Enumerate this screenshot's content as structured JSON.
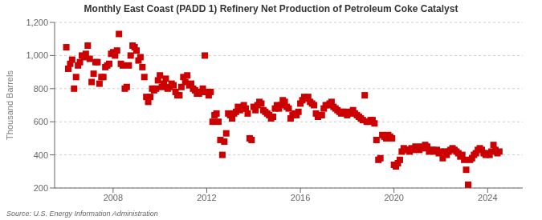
{
  "chart_data": {
    "type": "scatter",
    "title": "Monthly East Coast (PADD 1) Refinery Net Production of Petroleum Coke Catalyst",
    "y_label": "Thousand Barrels",
    "annotations": [
      "Source: U.S. Energy Information Administration"
    ],
    "color": "#cc0000",
    "marker": "square",
    "grid": true,
    "xlim": [
      2005.5,
      2025.5
    ],
    "xticks": [
      2008,
      2012,
      2016,
      2020,
      2024
    ],
    "ylim": [
      200,
      1200
    ],
    "yticks": [
      200,
      400,
      600,
      800,
      {
        "value": 1000,
        "label": "1,000"
      },
      {
        "value": 1200,
        "label": "1,200"
      }
    ],
    "x": [
      2006.0,
      2006.083,
      2006.167,
      2006.25,
      2006.333,
      2006.417,
      2006.5,
      2006.583,
      2006.667,
      2006.75,
      2006.833,
      2006.917,
      2007.0,
      2007.083,
      2007.167,
      2007.25,
      2007.333,
      2007.417,
      2007.5,
      2007.583,
      2007.667,
      2007.75,
      2007.833,
      2007.917,
      2008.0,
      2008.083,
      2008.167,
      2008.25,
      2008.333,
      2008.417,
      2008.5,
      2008.583,
      2008.667,
      2008.75,
      2008.833,
      2008.917,
      2009.0,
      2009.083,
      2009.167,
      2009.25,
      2009.333,
      2009.417,
      2009.5,
      2009.583,
      2009.667,
      2009.75,
      2009.833,
      2009.917,
      2010.0,
      2010.083,
      2010.167,
      2010.25,
      2010.333,
      2010.417,
      2010.5,
      2010.583,
      2010.667,
      2010.75,
      2010.833,
      2010.917,
      2011.0,
      2011.083,
      2011.167,
      2011.25,
      2011.333,
      2011.417,
      2011.5,
      2011.583,
      2011.667,
      2011.75,
      2011.833,
      2011.917,
      2012.0,
      2012.083,
      2012.167,
      2012.25,
      2012.333,
      2012.417,
      2012.5,
      2012.583,
      2012.667,
      2012.75,
      2012.833,
      2012.917,
      2013.0,
      2013.083,
      2013.167,
      2013.25,
      2013.333,
      2013.417,
      2013.5,
      2013.583,
      2013.667,
      2013.75,
      2013.833,
      2013.917,
      2014.0,
      2014.083,
      2014.167,
      2014.25,
      2014.333,
      2014.417,
      2014.5,
      2014.583,
      2014.667,
      2014.75,
      2014.833,
      2014.917,
      2015.0,
      2015.083,
      2015.167,
      2015.25,
      2015.333,
      2015.417,
      2015.5,
      2015.583,
      2015.667,
      2015.75,
      2015.833,
      2015.917,
      2016.0,
      2016.083,
      2016.167,
      2016.25,
      2016.333,
      2016.417,
      2016.5,
      2016.583,
      2016.667,
      2016.75,
      2016.833,
      2016.917,
      2017.0,
      2017.083,
      2017.167,
      2017.25,
      2017.333,
      2017.417,
      2017.5,
      2017.583,
      2017.667,
      2017.75,
      2017.833,
      2017.917,
      2018.0,
      2018.083,
      2018.167,
      2018.25,
      2018.333,
      2018.417,
      2018.5,
      2018.583,
      2018.667,
      2018.75,
      2018.833,
      2018.917,
      2019.0,
      2019.083,
      2019.167,
      2019.25,
      2019.333,
      2019.417,
      2019.5,
      2019.583,
      2019.667,
      2019.75,
      2019.833,
      2019.917,
      2020.0,
      2020.083,
      2020.167,
      2020.25,
      2020.333,
      2020.417,
      2020.5,
      2020.583,
      2020.667,
      2020.75,
      2020.833,
      2020.917,
      2021.0,
      2021.083,
      2021.167,
      2021.25,
      2021.333,
      2021.417,
      2021.5,
      2021.583,
      2021.667,
      2021.75,
      2021.833,
      2021.917,
      2022.0,
      2022.083,
      2022.167,
      2022.25,
      2022.333,
      2022.417,
      2022.5,
      2022.583,
      2022.667,
      2022.75,
      2022.833,
      2022.917,
      2023.0,
      2023.083,
      2023.167,
      2023.25,
      2023.333,
      2023.417,
      2023.5,
      2023.583,
      2023.667,
      2023.75,
      2023.833,
      2023.917,
      2024.0,
      2024.083,
      2024.167,
      2024.25,
      2024.333,
      2024.417,
      2024.5
    ],
    "values": [
      1050,
      920,
      950,
      975,
      800,
      870,
      940,
      960,
      1000,
      990,
      1010,
      1060,
      980,
      840,
      890,
      960,
      960,
      830,
      870,
      870,
      930,
      940,
      950,
      1010,
      1020,
      1000,
      1030,
      1130,
      950,
      940,
      800,
      810,
      940,
      1000,
      1060,
      1050,
      1030,
      970,
      990,
      930,
      870,
      750,
      720,
      750,
      800,
      790,
      800,
      850,
      880,
      810,
      830,
      860,
      800,
      810,
      830,
      820,
      780,
      760,
      760,
      810,
      870,
      840,
      880,
      820,
      830,
      800,
      790,
      770,
      770,
      780,
      800,
      1000,
      780,
      760,
      780,
      600,
      640,
      650,
      600,
      490,
      400,
      480,
      530,
      650,
      640,
      620,
      650,
      660,
      690,
      670,
      680,
      700,
      680,
      650,
      500,
      490,
      690,
      670,
      700,
      720,
      710,
      670,
      660,
      650,
      640,
      620,
      630,
      680,
      700,
      680,
      700,
      730,
      720,
      690,
      680,
      620,
      640,
      650,
      640,
      660,
      710,
      730,
      750,
      740,
      750,
      720,
      710,
      700,
      650,
      630,
      640,
      640,
      680,
      700,
      700,
      710,
      720,
      690,
      680,
      670,
      660,
      650,
      660,
      660,
      640,
      650,
      660,
      670,
      650,
      640,
      630,
      620,
      610,
      760,
      600,
      600,
      610,
      610,
      590,
      490,
      370,
      380,
      520,
      510,
      500,
      520,
      510,
      500,
      340,
      330,
      350,
      370,
      420,
      440,
      430,
      430,
      420,
      440,
      430,
      450,
      440,
      430,
      450,
      440,
      460,
      450,
      420,
      430,
      430,
      420,
      430,
      410,
      420,
      380,
      420,
      400,
      420,
      430,
      440,
      430,
      420,
      410,
      390,
      400,
      370,
      310,
      220,
      370,
      380,
      400,
      410,
      430,
      440,
      430,
      410,
      400,
      410,
      400,
      420,
      460,
      430,
      410,
      420
    ]
  }
}
